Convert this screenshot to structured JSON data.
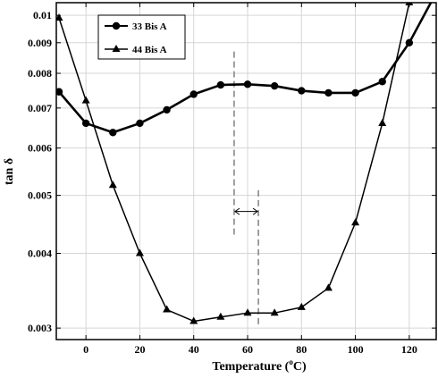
{
  "chart_data": {
    "type": "line",
    "xlabel": "Temperature (",
    "xlabel_sup": "o",
    "xlabel_unit": "C)",
    "ylabel": "tan δ",
    "y_scale": "log",
    "xlim": [
      -11,
      130
    ],
    "ylim": [
      0.00287,
      0.0105
    ],
    "grid": true,
    "legend_position": "top-left",
    "x_ticks": [
      0,
      20,
      40,
      60,
      80,
      100,
      120
    ],
    "x_tick_labels": [
      "0",
      "20",
      "40",
      "60",
      "80",
      "100",
      "120"
    ],
    "y_ticks": [
      0.003,
      0.004,
      0.005,
      0.006,
      0.007,
      0.008,
      0.009,
      0.01
    ],
    "y_tick_labels": [
      "0.003",
      "0.004",
      "0.005",
      "0.006",
      "0.007",
      "0.008",
      "0.009",
      "0.01"
    ],
    "series": [
      {
        "name": "33 Bis A",
        "marker": "circle",
        "x": [
          -10,
          0,
          10,
          20,
          30,
          40,
          50,
          60,
          70,
          80,
          90,
          100,
          110,
          120,
          128
        ],
        "y": [
          0.00745,
          0.0066,
          0.00637,
          0.0066,
          0.00695,
          0.00738,
          0.00765,
          0.00767,
          0.00762,
          0.00748,
          0.00742,
          0.00742,
          0.00775,
          0.009,
          0.0105
        ]
      },
      {
        "name": "44 Bis A",
        "marker": "triangle",
        "x": [
          -10,
          0,
          10,
          20,
          30,
          40,
          50,
          60,
          70,
          80,
          90,
          100,
          110,
          120
        ],
        "y": [
          0.0099,
          0.0072,
          0.0052,
          0.004,
          0.00322,
          0.00308,
          0.00313,
          0.00318,
          0.00318,
          0.00325,
          0.0035,
          0.0045,
          0.0066,
          0.0105
        ]
      }
    ],
    "annotations": {
      "dashed_lines_x": [
        55,
        64
      ],
      "arrow_between": [
        55,
        64
      ]
    }
  }
}
